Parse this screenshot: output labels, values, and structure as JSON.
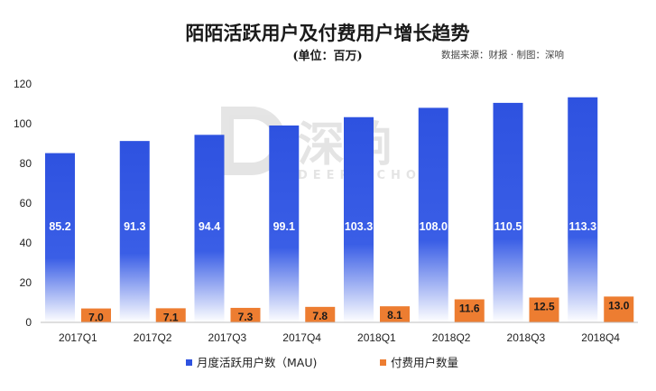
{
  "chart_data": {
    "type": "bar",
    "title": "陌陌活跃用户及付费用户增长趋势",
    "subtitle": "(单位：百万)",
    "source": "数据来源：财报 · 制图：深响",
    "categories": [
      "2017Q1",
      "2017Q2",
      "2017Q3",
      "2017Q4",
      "2018Q1",
      "2018Q2",
      "2018Q3",
      "2018Q4"
    ],
    "series": [
      {
        "name": "月度活跃用户数（MAU)",
        "color": "#2E52E0",
        "values": [
          85.2,
          91.3,
          94.4,
          99.1,
          103.3,
          108.0,
          110.5,
          113.3
        ],
        "labels": [
          "85.2",
          "91.3",
          "94.4",
          "99.1",
          "103.3",
          "108.0",
          "110.5",
          "113.3"
        ]
      },
      {
        "name": "付费用户数量",
        "color": "#ED7D31",
        "values": [
          7.0,
          7.1,
          7.3,
          7.8,
          8.1,
          11.6,
          12.5,
          13.0
        ],
        "labels": [
          "7.0",
          "7.1",
          "7.3",
          "7.8",
          "8.1",
          "11.6",
          "12.5",
          "13.0"
        ]
      }
    ],
    "ylim": [
      0,
      120
    ],
    "yticks": [
      "0",
      "20",
      "40",
      "60",
      "80",
      "100",
      "120"
    ],
    "grid": false,
    "legend": "bottom",
    "watermark": {
      "glyph": "深响",
      "text": "DEEP ECHO"
    }
  }
}
